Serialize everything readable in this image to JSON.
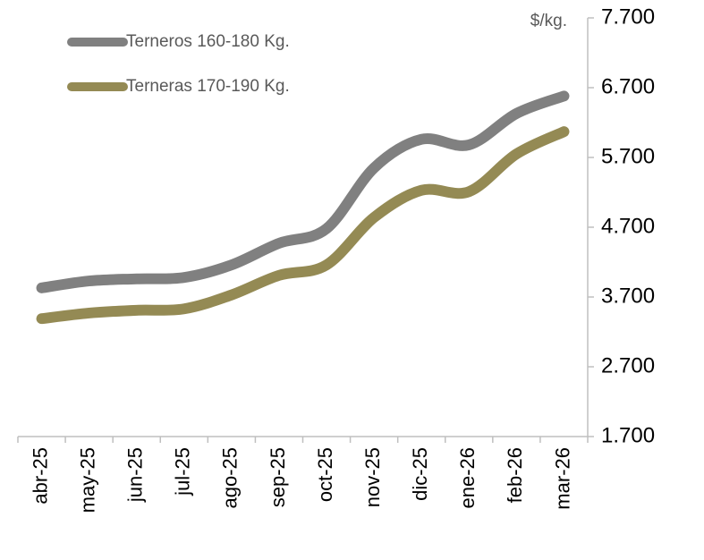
{
  "chart_data": {
    "type": "line",
    "y_label": "$/kg.",
    "categories": [
      "abr-25",
      "may-25",
      "jun-25",
      "jul-25",
      "ago-25",
      "sep-25",
      "oct-25",
      "nov-25",
      "dic-25",
      "ene-26",
      "feb-26",
      "mar-26"
    ],
    "series": [
      {
        "name": "Terneros 160-180 Kg.",
        "color": "#808080",
        "values": [
          3830,
          3930,
          3960,
          3980,
          4160,
          4470,
          4680,
          5550,
          5960,
          5880,
          6330,
          6580
        ]
      },
      {
        "name": "Terneras 170-190 Kg.",
        "color": "#948a54",
        "values": [
          3390,
          3470,
          3510,
          3530,
          3730,
          4010,
          4160,
          4840,
          5230,
          5210,
          5750,
          6070
        ]
      }
    ],
    "ylim": [
      1700,
      7700
    ],
    "yticks": [
      {
        "value": 1700,
        "label": "1.700"
      },
      {
        "value": 2700,
        "label": "2.700"
      },
      {
        "value": 3700,
        "label": "3.700"
      },
      {
        "value": 4700,
        "label": "4.700"
      },
      {
        "value": 5700,
        "label": "5.700"
      },
      {
        "value": 6700,
        "label": "6.700"
      },
      {
        "value": 7700,
        "label": "7.700"
      }
    ],
    "legend": "top-left"
  }
}
